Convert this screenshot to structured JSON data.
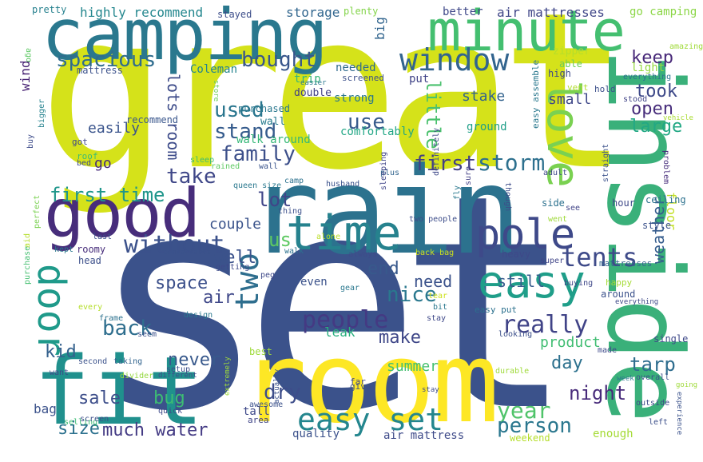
{
  "words": [
    {
      "text": "set",
      "color": "#3b528b"
    },
    {
      "text": "great",
      "color": "#d5e21a"
    },
    {
      "text": "rain",
      "color": "#2c728e"
    },
    {
      "text": "inside",
      "color": "#3ab07a"
    },
    {
      "text": "room",
      "color": "#fde725"
    },
    {
      "text": "camping",
      "color": "#2a788e"
    },
    {
      "text": "fit",
      "color": "#20908d"
    },
    {
      "text": "minute",
      "color": "#44bf70"
    },
    {
      "text": "good",
      "color": "#472d7b"
    },
    {
      "text": "time",
      "color": "#26828e"
    },
    {
      "text": "easy",
      "color": "#1f9e89"
    },
    {
      "text": "pole",
      "color": "#3e4989"
    },
    {
      "text": "window",
      "color": "#32648e"
    },
    {
      "text": "easy set",
      "color": "#24868e"
    },
    {
      "text": "love",
      "color": "#7ad151"
    },
    {
      "text": "door",
      "color": "#1f9a8a"
    },
    {
      "text": "two",
      "color": "#2e6e8e"
    },
    {
      "text": "tents",
      "color": "#3e4a89"
    },
    {
      "text": "people",
      "color": "#443a83"
    },
    {
      "text": "really",
      "color": "#404387"
    },
    {
      "text": "spacious",
      "color": "#2f6c8e"
    },
    {
      "text": "bought",
      "color": "#39568c"
    },
    {
      "text": "family",
      "color": "#3c4f8a"
    },
    {
      "text": "without",
      "color": "#3b518b"
    },
    {
      "text": "storm",
      "color": "#2d708e"
    },
    {
      "text": "first",
      "color": "#423f85"
    },
    {
      "text": "first time",
      "color": "#1f968b"
    },
    {
      "text": "take",
      "color": "#3f4788"
    },
    {
      "text": "use",
      "color": "#375a8c"
    },
    {
      "text": "used",
      "color": "#2a768e"
    },
    {
      "text": "stand",
      "color": "#365c8d"
    },
    {
      "text": "lots room",
      "color": "#3e4c8a"
    },
    {
      "text": "keep",
      "color": "#482979"
    },
    {
      "text": "took",
      "color": "#3e4989"
    },
    {
      "text": "open",
      "color": "#472d7b"
    },
    {
      "text": "large",
      "color": "#22a884"
    },
    {
      "text": "little",
      "color": "#4ac16d"
    },
    {
      "text": "nice",
      "color": "#2a788e"
    },
    {
      "text": "need",
      "color": "#3b528b"
    },
    {
      "text": "make",
      "color": "#3f4788"
    },
    {
      "text": "year",
      "color": "#50c46a"
    },
    {
      "text": "person",
      "color": "#2a778e"
    },
    {
      "text": "night",
      "color": "#472a7a"
    },
    {
      "text": "dry",
      "color": "#3d4d8a"
    },
    {
      "text": "back",
      "color": "#2e6e8e"
    },
    {
      "text": "space",
      "color": "#3c508b"
    },
    {
      "text": "air",
      "color": "#3f4889"
    },
    {
      "text": "well",
      "color": "#3b528b"
    },
    {
      "text": "lot",
      "color": "#404588"
    },
    {
      "text": "us",
      "color": "#5ec962"
    },
    {
      "text": "kid",
      "color": "#34618d"
    },
    {
      "text": "never",
      "color": "#38598c"
    },
    {
      "text": "bug",
      "color": "#3dbc74"
    },
    {
      "text": "sale",
      "color": "#3d4e8a"
    },
    {
      "text": "size",
      "color": "#2c718e"
    },
    {
      "text": "much water",
      "color": "#443b84"
    },
    {
      "text": "day",
      "color": "#2d718e"
    },
    {
      "text": "tarp",
      "color": "#2e6d8e"
    },
    {
      "text": "weather",
      "color": "#365d8d"
    },
    {
      "text": "product",
      "color": "#40bd72"
    },
    {
      "text": "summer",
      "color": "#46c06f"
    },
    {
      "text": "still",
      "color": "#365c8d"
    },
    {
      "text": "end",
      "color": "#38598c"
    },
    {
      "text": "couple",
      "color": "#3a538b"
    },
    {
      "text": "go",
      "color": "#472c7a"
    },
    {
      "text": "easily",
      "color": "#3a548c"
    },
    {
      "text": "small",
      "color": "#3f4889"
    },
    {
      "text": "stake",
      "color": "#33638d"
    },
    {
      "text": "floor",
      "color": "#c2df23"
    },
    {
      "text": "highly recommend",
      "color": "#24878e"
    },
    {
      "text": "storage",
      "color": "#31668e"
    },
    {
      "text": "better",
      "color": "#3f4889"
    },
    {
      "text": "air mattresses",
      "color": "#404688"
    },
    {
      "text": "go camping",
      "color": "#8bd646"
    },
    {
      "text": "Coleman",
      "color": "#25848e"
    },
    {
      "text": "needed",
      "color": "#306a8e"
    },
    {
      "text": "trip",
      "color": "#35b779"
    },
    {
      "text": "put",
      "color": "#404387"
    },
    {
      "text": "strong",
      "color": "#2a768e"
    },
    {
      "text": "comfortably",
      "color": "#21a685"
    },
    {
      "text": "ground",
      "color": "#1f9f88"
    },
    {
      "text": "walk around",
      "color": "#37b878"
    },
    {
      "text": "wall",
      "color": "#287c8e"
    },
    {
      "text": "double",
      "color": "#424086"
    },
    {
      "text": "purchased",
      "color": "#2a788e"
    },
    {
      "text": "recommend",
      "color": "#39568c"
    },
    {
      "text": "mattress",
      "color": "#3b518b"
    },
    {
      "text": "big",
      "color": "#32658e"
    },
    {
      "text": "pretty",
      "color": "#26818e"
    },
    {
      "text": "stayed",
      "color": "#3d4e8a"
    },
    {
      "text": "plenty",
      "color": "#84d44b"
    },
    {
      "text": "wind",
      "color": "#482374"
    },
    {
      "text": "ago",
      "color": "#5cc863"
    },
    {
      "text": "zipper",
      "color": "#b5de2b"
    },
    {
      "text": "amazing",
      "color": "#a0da39"
    },
    {
      "text": "able",
      "color": "#6ece58"
    },
    {
      "text": "light",
      "color": "#95d840"
    },
    {
      "text": "high",
      "color": "#3e4989"
    },
    {
      "text": "hold",
      "color": "#3c4f8a"
    },
    {
      "text": "vent",
      "color": "#b2dd2d"
    },
    {
      "text": "everything",
      "color": "#2c718e"
    },
    {
      "text": "stood",
      "color": "#404387"
    },
    {
      "text": "vehicle",
      "color": "#aadc32"
    },
    {
      "text": "easy assemble",
      "color": "#2a788e"
    },
    {
      "text": "easier",
      "color": "#2a788e"
    },
    {
      "text": "screened",
      "color": "#3c4f8a"
    },
    {
      "text": "store",
      "color": "#6ccd5a"
    },
    {
      "text": "got",
      "color": "#3f4889"
    },
    {
      "text": "roof",
      "color": "#3dbc74"
    },
    {
      "text": "bed",
      "color": "#3e4a89"
    },
    {
      "text": "sleep",
      "color": "#3dbc74"
    },
    {
      "text": "rained",
      "color": "#5ec962"
    },
    {
      "text": "wall",
      "color": "#3a548c"
    },
    {
      "text": "buy",
      "color": "#3e4c8a"
    },
    {
      "text": "bigger",
      "color": "#26828e"
    },
    {
      "text": "perfect",
      "color": "#7ad151"
    },
    {
      "text": "aid",
      "color": "#b5de2b"
    },
    {
      "text": "purchase",
      "color": "#44bf70"
    },
    {
      "text": "queen size",
      "color": "#2a788e"
    },
    {
      "text": "camp",
      "color": "#2c718e"
    },
    {
      "text": "husband",
      "color": "#3b528b"
    },
    {
      "text": "plus",
      "color": "#32658e"
    },
    {
      "text": "thing",
      "color": "#3c4f8a"
    },
    {
      "text": "definitely",
      "color": "#3f4889"
    },
    {
      "text": "sleeping",
      "color": "#404588"
    },
    {
      "text": "sure",
      "color": "#424086"
    },
    {
      "text": "fly",
      "color": "#2a788e"
    },
    {
      "text": "two people",
      "color": "#3d4d8a"
    },
    {
      "text": "adult",
      "color": "#3f4889"
    },
    {
      "text": "though",
      "color": "#3e4c8a"
    },
    {
      "text": "straight",
      "color": "#3b518b"
    },
    {
      "text": "problem",
      "color": "#472d7b"
    },
    {
      "text": "side",
      "color": "#2c718e"
    },
    {
      "text": "hour",
      "color": "#3e4989"
    },
    {
      "text": "ceiling",
      "color": "#2c718e"
    },
    {
      "text": "see",
      "color": "#404387"
    },
    {
      "text": "went",
      "color": "#9fda3a"
    },
    {
      "text": "style",
      "color": "#3b528b"
    },
    {
      "text": "alone",
      "color": "#bade28"
    },
    {
      "text": "last",
      "color": "#3c4f8a"
    },
    {
      "text": "kept",
      "color": "#2a788e"
    },
    {
      "text": "roomy",
      "color": "#472d7b"
    },
    {
      "text": "comfortable",
      "color": "#3b528b"
    },
    {
      "text": "getting",
      "color": "#3e4a89"
    },
    {
      "text": "head",
      "color": "#3c4f8a"
    },
    {
      "text": "walk",
      "color": "#2c718e"
    },
    {
      "text": "peg",
      "color": "#3e4989"
    },
    {
      "text": "always",
      "color": "#3e4c8a"
    },
    {
      "text": "back bag",
      "color": "#cde11d"
    },
    {
      "text": "heavy",
      "color": "#3e4989"
    },
    {
      "text": "super",
      "color": "#404588"
    },
    {
      "text": "mattresses",
      "color": "#32648e"
    },
    {
      "text": "gear",
      "color": "#2a788e"
    },
    {
      "text": "even",
      "color": "#3b528b"
    },
    {
      "text": "buying",
      "color": "#3f4889"
    },
    {
      "text": "happy",
      "color": "#a5db36"
    },
    {
      "text": "around",
      "color": "#3b518b"
    },
    {
      "text": "everything",
      "color": "#3e4989"
    },
    {
      "text": "every",
      "color": "#b5de2b"
    },
    {
      "text": "frame",
      "color": "#2c718e"
    },
    {
      "text": "design",
      "color": "#2a788e"
    },
    {
      "text": "tear",
      "color": "#cde11d"
    },
    {
      "text": "easy put",
      "color": "#2c718e"
    },
    {
      "text": "bit",
      "color": "#2a788e"
    },
    {
      "text": "stay",
      "color": "#3f4889"
    },
    {
      "text": "leak",
      "color": "#29af7f"
    },
    {
      "text": "looking",
      "color": "#3c4f8a"
    },
    {
      "text": "seem",
      "color": "#3b518b"
    },
    {
      "text": "single",
      "color": "#3e4989"
    },
    {
      "text": "made",
      "color": "#3e4a89"
    },
    {
      "text": "best",
      "color": "#9fda3a"
    },
    {
      "text": "second",
      "color": "#3b528b"
    },
    {
      "text": "taking",
      "color": "#32648e"
    },
    {
      "text": "divider",
      "color": "#95d840"
    },
    {
      "text": "different",
      "color": "#3e4c8a"
    },
    {
      "text": "setup",
      "color": "#3c4f8a"
    },
    {
      "text": "want",
      "color": "#3e4989"
    },
    {
      "text": "durable",
      "color": "#9fda3a"
    },
    {
      "text": "week",
      "color": "#2a788e"
    },
    {
      "text": "overall",
      "color": "#3b528b"
    },
    {
      "text": "far",
      "color": "#404588"
    },
    {
      "text": "give",
      "color": "#3c4f8a"
    },
    {
      "text": "stay",
      "color": "#3e4a89"
    },
    {
      "text": "awesome",
      "color": "#3b518b"
    },
    {
      "text": "extremely",
      "color": "#9fda3a"
    },
    {
      "text": "quick",
      "color": "#3e4989"
    },
    {
      "text": "selling",
      "color": "#3dbc74"
    },
    {
      "text": "screen",
      "color": "#3c4f8a"
    },
    {
      "text": "bag",
      "color": "#3b528b"
    },
    {
      "text": "tall",
      "color": "#3e4989"
    },
    {
      "text": "area",
      "color": "#404588"
    },
    {
      "text": "actually",
      "color": "#3b518b"
    },
    {
      "text": "quality",
      "color": "#3b518b"
    },
    {
      "text": "air mattress",
      "color": "#3e4a89"
    },
    {
      "text": "weekend",
      "color": "#b5de2b"
    },
    {
      "text": "enough",
      "color": "#a5db36"
    },
    {
      "text": "outside",
      "color": "#3e4989"
    },
    {
      "text": "left",
      "color": "#3c4f8a"
    },
    {
      "text": "experience",
      "color": "#3b528b"
    },
    {
      "text": "going",
      "color": "#9fda3a"
    }
  ]
}
